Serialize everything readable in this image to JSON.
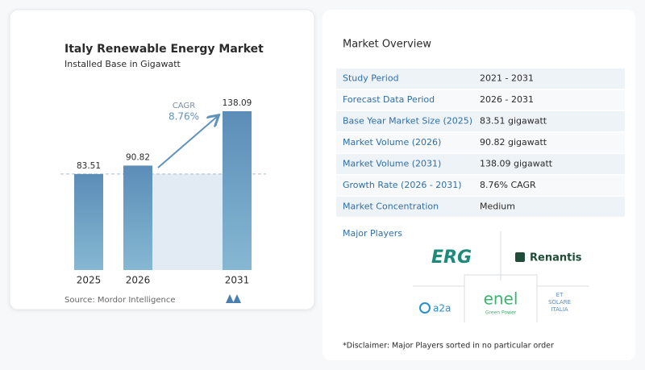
{
  "chart_data": {
    "type": "bar",
    "title": "Italy Renewable Energy Market",
    "subtitle": "Installed Base in Gigawatt",
    "categories": [
      "2025",
      "2026",
      "2031"
    ],
    "values": [
      83.51,
      90.82,
      138.09
    ],
    "color": "#5f93bd",
    "annotation": {
      "label": "CAGR",
      "value": "8.76%"
    },
    "source": "Source: Mordor Intelligence"
  },
  "overview": {
    "title": "Market Overview",
    "rows": [
      [
        "Study Period",
        "2021 - 2031"
      ],
      [
        "Forecast Data Period",
        "2026 - 2031"
      ],
      [
        "Base Year Market Size (2025)",
        "83.51 gigawatt"
      ],
      [
        "Market Volume (2026)",
        "90.82 gigawatt"
      ],
      [
        "Market Volume (2031)",
        "138.09 gigawatt"
      ],
      [
        "Growth Rate (2026 - 2031)",
        "8.76% CAGR"
      ],
      [
        "Market Concentration",
        "Medium"
      ]
    ]
  },
  "players": {
    "title": "Major Players",
    "logos": [
      "ERG",
      "Renantis",
      "enel",
      "Green Power",
      "a2a",
      "ET",
      "SOLARE",
      "ITALIA"
    ],
    "disclaimer": "*Disclaimer: Major Players sorted in no particular order"
  }
}
